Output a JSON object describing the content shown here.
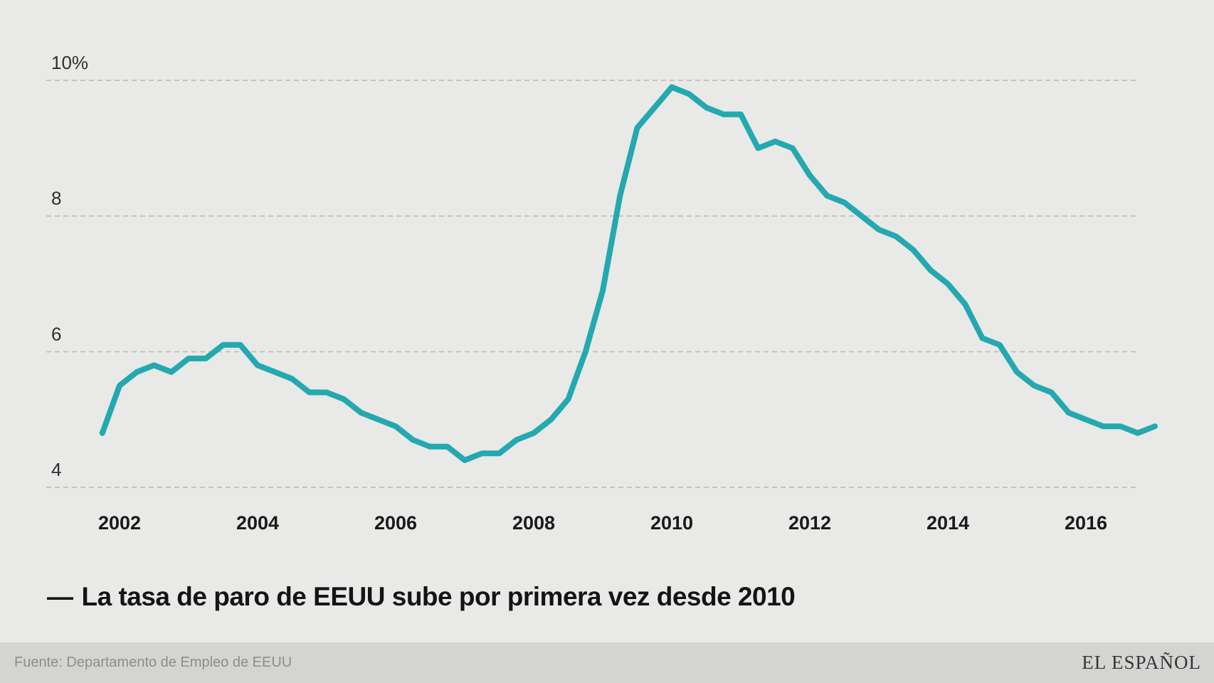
{
  "page": {
    "background": "#e9e9e7"
  },
  "caption": {
    "dash": "—",
    "text": "La tasa de paro de EEUU sube por primera vez desde 2010"
  },
  "footer": {
    "source": "Fuente: Departamento de Empleo de EEUU",
    "brand": "EL ESPAÑOL",
    "background": "#d4d4d2"
  },
  "chart_data": {
    "type": "line",
    "title": "La tasa de paro de EEUU sube por primera vez desde 2010",
    "unit": "%",
    "line_color": "#23a9af",
    "grid": true,
    "legend_position": "none",
    "ylim": [
      4,
      10
    ],
    "y_axis": [
      {
        "label": "10%",
        "value": 10
      },
      {
        "label": "8",
        "value": 8
      },
      {
        "label": "6",
        "value": 6
      },
      {
        "label": "4",
        "value": 4
      }
    ],
    "x_ticks": [
      "2002",
      "2004",
      "2006",
      "2008",
      "2010",
      "2012",
      "2014",
      "2016"
    ],
    "x": [
      "2001-Q3",
      "2001-Q4",
      "2002-Q1",
      "2002-Q2",
      "2002-Q3",
      "2002-Q4",
      "2003-Q1",
      "2003-Q2",
      "2003-Q3",
      "2003-Q4",
      "2004-Q1",
      "2004-Q2",
      "2004-Q3",
      "2004-Q4",
      "2005-Q1",
      "2005-Q2",
      "2005-Q3",
      "2005-Q4",
      "2006-Q1",
      "2006-Q2",
      "2006-Q3",
      "2006-Q4",
      "2007-Q1",
      "2007-Q2",
      "2007-Q3",
      "2007-Q4",
      "2008-Q1",
      "2008-Q2",
      "2008-Q3",
      "2008-Q4",
      "2009-Q1",
      "2009-Q2",
      "2009-Q3",
      "2009-Q4",
      "2010-Q1",
      "2010-Q2",
      "2010-Q3",
      "2010-Q4",
      "2011-Q1",
      "2011-Q2",
      "2011-Q3",
      "2011-Q4",
      "2012-Q1",
      "2012-Q2",
      "2012-Q3",
      "2012-Q4",
      "2013-Q1",
      "2013-Q2",
      "2013-Q3",
      "2013-Q4",
      "2014-Q1",
      "2014-Q2",
      "2014-Q3",
      "2014-Q4",
      "2015-Q1",
      "2015-Q2",
      "2015-Q3",
      "2015-Q4",
      "2016-Q1",
      "2016-Q2",
      "2016-Q3",
      "2016-Q4"
    ],
    "series": [
      {
        "name": "Tasa de paro de EEUU (%)",
        "values": [
          4.8,
          5.5,
          5.7,
          5.8,
          5.7,
          5.9,
          5.9,
          6.1,
          6.1,
          5.8,
          5.7,
          5.6,
          5.4,
          5.4,
          5.3,
          5.1,
          5.0,
          4.9,
          4.7,
          4.6,
          4.6,
          4.4,
          4.5,
          4.5,
          4.7,
          4.8,
          5.0,
          5.3,
          6.0,
          6.9,
          8.3,
          9.3,
          9.6,
          9.9,
          9.8,
          9.6,
          9.5,
          9.5,
          9.0,
          9.1,
          9.0,
          8.6,
          8.3,
          8.2,
          8.0,
          7.8,
          7.7,
          7.5,
          7.2,
          7.0,
          6.7,
          6.2,
          6.1,
          5.7,
          5.5,
          5.4,
          5.1,
          5.0,
          4.9,
          4.9,
          4.8,
          4.9
        ]
      }
    ]
  }
}
